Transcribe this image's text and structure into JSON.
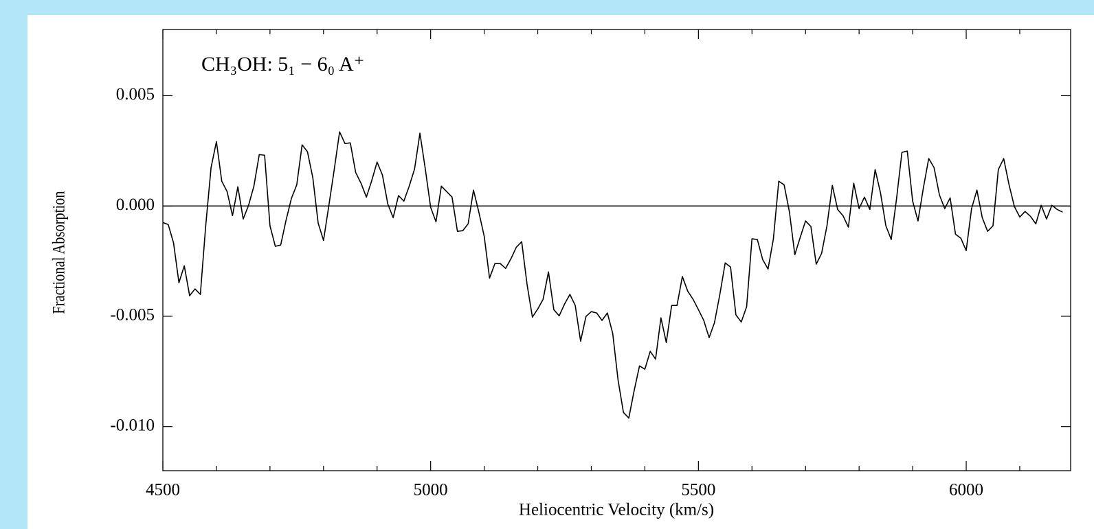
{
  "chart_data": {
    "type": "line",
    "annotation": "CH₃OH:  5₁ − 6₀  A⁺",
    "xlabel": "Heliocentric Velocity (km/s)",
    "ylabel": "Fractional Absorption",
    "color": "#000000",
    "x": [
      4500,
      4510,
      4520,
      4530,
      4540,
      4550,
      4560,
      4570,
      4580,
      4590,
      4600,
      4610,
      4620,
      4630,
      4640,
      4650,
      4660,
      4670,
      4680,
      4690,
      4700,
      4710,
      4720,
      4730,
      4740,
      4750,
      4760,
      4770,
      4780,
      4790,
      4800,
      4810,
      4820,
      4830,
      4840,
      4850,
      4860,
      4870,
      4880,
      4890,
      4900,
      4910,
      4920,
      4930,
      4940,
      4950,
      4960,
      4970,
      4980,
      4990,
      5000,
      5010,
      5020,
      5030,
      5040,
      5050,
      5060,
      5070,
      5080,
      5090,
      5100,
      5110,
      5120,
      5130,
      5140,
      5150,
      5160,
      5170,
      5180,
      5190,
      5200,
      5210,
      5220,
      5230,
      5240,
      5250,
      5260,
      5270,
      5280,
      5290,
      5300,
      5310,
      5320,
      5330,
      5340,
      5350,
      5360,
      5370,
      5380,
      5390,
      5400,
      5410,
      5420,
      5430,
      5440,
      5450,
      5460,
      5470,
      5480,
      5490,
      5500,
      5510,
      5520,
      5530,
      5540,
      5550,
      5560,
      5570,
      5580,
      5590,
      5600,
      5610,
      5620,
      5630,
      5640,
      5650,
      5660,
      5670,
      5680,
      5690,
      5700,
      5710,
      5720,
      5730,
      5740,
      5750,
      5760,
      5770,
      5780,
      5790,
      5800,
      5810,
      5820,
      5830,
      5840,
      5850,
      5860,
      5870,
      5880,
      5890,
      5900,
      5910,
      5920,
      5930,
      5940,
      5950,
      5960,
      5970,
      5980,
      5990,
      6000,
      6010,
      6020,
      6030,
      6040,
      6050,
      6060,
      6070,
      6080,
      6090,
      6100,
      6110,
      6120,
      6130,
      6140,
      6150,
      6160,
      6170,
      6180
    ],
    "values": [
      -0.00075,
      -0.00084,
      -0.00168,
      -0.00348,
      -0.00271,
      -0.00407,
      -0.00376,
      -0.00401,
      -0.0009,
      0.00174,
      0.00292,
      0.00112,
      0.00065,
      -0.00044,
      0.00087,
      -0.00059,
      3e-05,
      0.0009,
      0.00233,
      0.0023,
      -0.0009,
      -0.00183,
      -0.00177,
      -0.00065,
      0.00034,
      0.00096,
      0.00277,
      0.00246,
      0.00128,
      -0.00078,
      -0.00156,
      3e-05,
      0.00165,
      0.00336,
      0.00283,
      0.00286,
      0.00152,
      0.00103,
      0.0004,
      0.00115,
      0.00199,
      0.0014,
      9e-05,
      -0.00053,
      0.00047,
      0.00022,
      0.0009,
      0.00168,
      0.0033,
      0.00168,
      -6e-05,
      -0.00072,
      0.0009,
      0.00065,
      0.0004,
      -0.00115,
      -0.00112,
      -0.00081,
      0.00072,
      -0.00028,
      -0.00137,
      -0.00327,
      -0.00261,
      -0.00261,
      -0.00283,
      -0.00239,
      -0.00187,
      -0.00162,
      -0.00355,
      -0.00504,
      -0.00467,
      -0.00423,
      -0.00299,
      -0.0047,
      -0.00498,
      -0.00445,
      -0.00401,
      -0.00451,
      -0.00613,
      -0.00501,
      -0.00479,
      -0.00485,
      -0.00519,
      -0.00485,
      -0.00578,
      -0.0079,
      -0.00936,
      -0.00961,
      -0.00837,
      -0.00725,
      -0.0074,
      -0.00659,
      -0.00694,
      -0.00507,
      -0.00619,
      -0.00451,
      -0.00451,
      -0.0032,
      -0.00386,
      -0.00423,
      -0.0047,
      -0.00519,
      -0.00597,
      -0.00529,
      -0.00401,
      -0.00258,
      -0.00277,
      -0.00494,
      -0.00526,
      -0.00457,
      -0.00149,
      -0.00152,
      -0.00243,
      -0.00286,
      -0.00149,
      0.00112,
      0.00096,
      -0.00028,
      -0.00221,
      -0.00143,
      -0.00068,
      -0.00093,
      -0.00264,
      -0.00215,
      -0.0009,
      0.00093,
      -0.00016,
      -0.00044,
      -0.00096,
      0.00103,
      -0.00012,
      0.0004,
      -0.00016,
      0.00165,
      0.00059,
      -0.0009,
      -0.00152,
      0.00034,
      0.00243,
      0.00249,
      0.00022,
      -0.00068,
      0.00081,
      0.00215,
      0.00174,
      0.0005,
      -0.00012,
      0.00037,
      -0.00128,
      -0.00146,
      -0.00202,
      -0.00012,
      0.00072,
      -0.00053,
      -0.00115,
      -0.0009,
      0.00165,
      0.00215,
      0.00096,
      -3e-05,
      -0.0005,
      -0.00025,
      -0.00047,
      -0.00081,
      3e-05,
      -0.00059,
      3e-05,
      -0.00016,
      -0.00028
    ],
    "xlim": [
      4500,
      6195
    ],
    "ylim": [
      -0.012,
      0.008
    ],
    "xticks": [
      4500,
      5000,
      5500,
      6000
    ],
    "xminorticks": [
      4600,
      4700,
      4800,
      4900,
      5100,
      5200,
      5300,
      5400,
      5600,
      5700,
      5800,
      5900,
      6100
    ],
    "yticks": [
      {
        "value": 0.005,
        "label": "0.005"
      },
      {
        "value": 0,
        "label": "0.000"
      },
      {
        "value": -0.005,
        "label": "-0.005"
      },
      {
        "value": -0.01,
        "label": "-0.010"
      }
    ],
    "hline": 0
  }
}
